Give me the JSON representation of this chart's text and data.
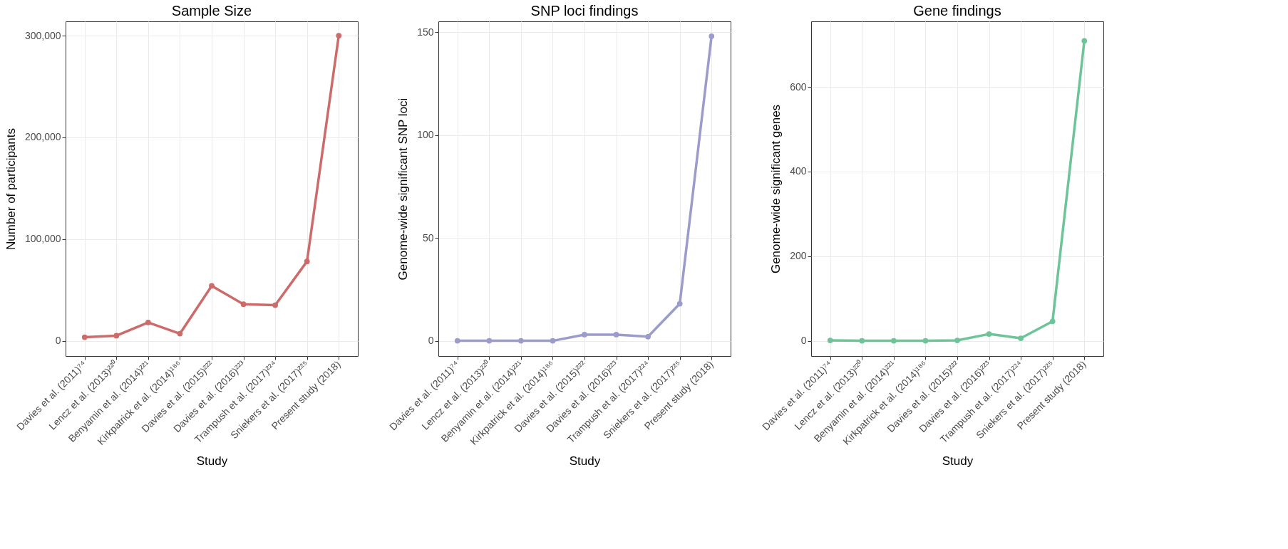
{
  "chart_data": [
    {
      "type": "line",
      "title": "Sample Size",
      "xlabel": "Study",
      "ylabel": "Number of participants",
      "categories": [
        "Davies et al. (2011)⁷⁴",
        "Lencz et al. (2013)²²⁰",
        "Benyamin et al. (2014)²²¹",
        "Kirkpatrick et al. (2014)¹⁸⁶",
        "Davies et al. (2015)²²²",
        "Davies et al. (2016)²²³",
        "Trampush et al. (2017)²²⁴",
        "Sniekers et al. (2017)²²⁵",
        "Present study (2018)"
      ],
      "series": [
        {
          "color": "#cd6b6b",
          "values": [
            3500,
            5000,
            18000,
            7000,
            54000,
            36000,
            35000,
            78000,
            300000
          ]
        }
      ],
      "ylim": [
        -15000,
        314000
      ],
      "yticks": [
        0,
        {
          "value": 100000,
          "label": "100,000"
        },
        {
          "value": 200000,
          "label": "200,000"
        },
        {
          "value": 300000,
          "label": "300,000"
        }
      ],
      "grid": true,
      "marker": "circle",
      "line_style": "solid"
    },
    {
      "type": "line",
      "title": "SNP loci findings",
      "xlabel": "Study",
      "ylabel": "Genome-wide significant SNP loci",
      "categories": [
        "Davies et al. (2011)⁷⁴",
        "Lencz et al. (2013)²²⁰",
        "Benyamin et al. (2014)²²¹",
        "Kirkpatrick et al. (2014)¹⁸⁶",
        "Davies et al. (2015)²²²",
        "Davies et al. (2016)²²³",
        "Trampush et al. (2017)²²⁴",
        "Sniekers et al. (2017)²²⁵",
        "Present study (2018)"
      ],
      "series": [
        {
          "color": "#9c9ccc",
          "values": [
            0,
            0,
            0,
            0,
            3,
            3,
            2,
            18,
            148
          ]
        }
      ],
      "ylim": [
        -7.4,
        155.2
      ],
      "yticks": [
        0,
        50,
        100,
        150
      ],
      "grid": true,
      "marker": "circle",
      "line_style": "solid"
    },
    {
      "type": "line",
      "title": "Gene findings",
      "xlabel": "Study",
      "ylabel": "Genome-wide significant genes",
      "categories": [
        "Davies et al. (2011)⁷⁴",
        "Lencz et al. (2013)²²⁰",
        "Benyamin et al. (2014)²²¹",
        "Kirkpatrick et al. (2014)¹⁸⁶",
        "Davies et al. (2015)²²²",
        "Davies et al. (2016)²²³",
        "Trampush et al. (2017)²²⁴",
        "Sniekers et al. (2017)²²⁵",
        "Present study (2018)"
      ],
      "series": [
        {
          "color": "#6cc497",
          "values": [
            1,
            0,
            0,
            0,
            1,
            16,
            6,
            46,
            709
          ]
        }
      ],
      "ylim": [
        -36,
        755
      ],
      "yticks": [
        0,
        200,
        400,
        600
      ],
      "grid": true,
      "marker": "circle",
      "line_style": "solid"
    }
  ]
}
